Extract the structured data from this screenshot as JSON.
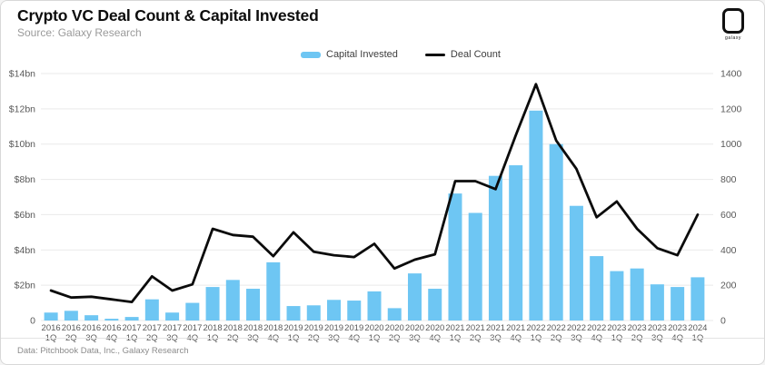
{
  "header": {
    "title": "Crypto VC Deal Count & Capital Invested",
    "source": "Source: Galaxy Research"
  },
  "logo": {
    "label": "galaxy"
  },
  "footer": {
    "note": "Data: Pitchbook Data, Inc., Galaxy Research"
  },
  "colors": {
    "bar": "#6EC6F3",
    "line": "#0B0B0B",
    "grid": "#E9E9E9",
    "axis_text": "#595959",
    "background": "#FFFFFF"
  },
  "chart_data": {
    "type": "bar",
    "subtype": "bar+line combo, dual y-axes",
    "title": "Crypto VC Deal Count & Capital Invested",
    "legend_position": "top-center",
    "grid": "horizontal only",
    "categories": [
      "2016 1Q",
      "2016 2Q",
      "2016 3Q",
      "2016 4Q",
      "2017 1Q",
      "2017 2Q",
      "2017 3Q",
      "2017 4Q",
      "2018 1Q",
      "2018 2Q",
      "2018 3Q",
      "2018 4Q",
      "2019 1Q",
      "2019 2Q",
      "2019 3Q",
      "2019 4Q",
      "2020 1Q",
      "2020 2Q",
      "2020 3Q",
      "2020 4Q",
      "2021 1Q",
      "2021 2Q",
      "2021 3Q",
      "2021 4Q",
      "2022 1Q",
      "2022 2Q",
      "2022 3Q",
      "2022 4Q",
      "2023 1Q",
      "2023 2Q",
      "2023 3Q",
      "2023 4Q",
      "2024 1Q"
    ],
    "series": [
      {
        "name": "Capital Invested",
        "type": "bar",
        "axis": "left",
        "unit": "$bn",
        "color": "#6EC6F3",
        "values": [
          0.45,
          0.55,
          0.3,
          0.1,
          0.2,
          1.2,
          0.45,
          1.0,
          1.9,
          2.3,
          1.8,
          3.3,
          0.82,
          0.86,
          1.17,
          1.13,
          1.65,
          0.7,
          2.67,
          1.8,
          7.2,
          6.1,
          8.2,
          8.8,
          11.9,
          10.0,
          6.5,
          3.65,
          2.8,
          2.95,
          2.05,
          1.9,
          2.45
        ]
      },
      {
        "name": "Deal Count",
        "type": "line",
        "axis": "right",
        "unit": "deals",
        "color": "#0B0B0B",
        "values": [
          170,
          130,
          135,
          120,
          105,
          250,
          170,
          205,
          520,
          485,
          475,
          365,
          500,
          390,
          370,
          360,
          435,
          295,
          345,
          375,
          790,
          790,
          745,
          1050,
          1340,
          1020,
          860,
          585,
          675,
          520,
          410,
          370,
          600
        ]
      }
    ],
    "left_axis": {
      "min": 0,
      "max": 14,
      "unit": "$bn",
      "ticks": [
        {
          "v": 0,
          "label": "0"
        },
        {
          "v": 2,
          "label": "$2bn"
        },
        {
          "v": 4,
          "label": "$4bn"
        },
        {
          "v": 6,
          "label": "$6bn"
        },
        {
          "v": 8,
          "label": "$8bn"
        },
        {
          "v": 10,
          "label": "$10bn"
        },
        {
          "v": 12,
          "label": "$12bn"
        },
        {
          "v": 14,
          "label": "$14bn"
        }
      ]
    },
    "right_axis": {
      "min": 0,
      "max": 1400,
      "unit": "deals",
      "ticks": [
        {
          "v": 0,
          "label": "0"
        },
        {
          "v": 200,
          "label": "200"
        },
        {
          "v": 400,
          "label": "400"
        },
        {
          "v": 600,
          "label": "600"
        },
        {
          "v": 800,
          "label": "800"
        },
        {
          "v": 1000,
          "label": "1000"
        },
        {
          "v": 1200,
          "label": "1200"
        },
        {
          "v": 1400,
          "label": "1400"
        }
      ]
    }
  }
}
